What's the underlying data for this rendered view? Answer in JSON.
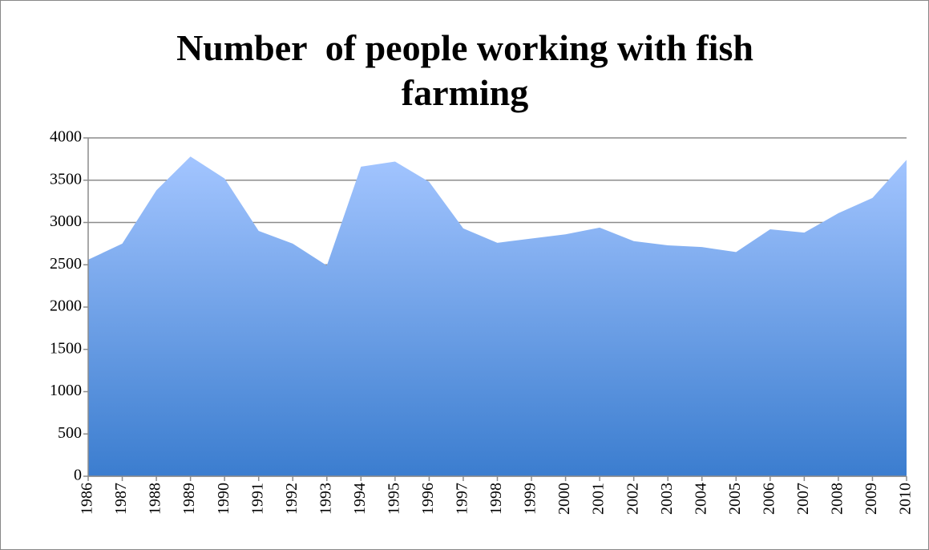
{
  "chart_data": {
    "type": "area",
    "title": "Number  of people working with fish farming",
    "categories": [
      "1986",
      "1987",
      "1988",
      "1989",
      "1990",
      "1991",
      "1992",
      "1993",
      "1994",
      "1995",
      "1996",
      "1997",
      "1998",
      "1999",
      "2000",
      "2001",
      "2002",
      "2003",
      "2004",
      "2005",
      "2006",
      "2007",
      "2008",
      "2009",
      "2010"
    ],
    "values": [
      2560,
      2750,
      3380,
      3780,
      3520,
      2900,
      2750,
      2490,
      3660,
      3720,
      3480,
      2930,
      2760,
      2810,
      2860,
      2940,
      2780,
      2730,
      2710,
      2650,
      2920,
      2880,
      3110,
      3290,
      3740
    ],
    "color": "#4f8ad8",
    "ylim": [
      0,
      4000
    ],
    "yticks": [
      0,
      500,
      1000,
      1500,
      2000,
      2500,
      3000,
      3500,
      4000
    ],
    "grid": true
  }
}
